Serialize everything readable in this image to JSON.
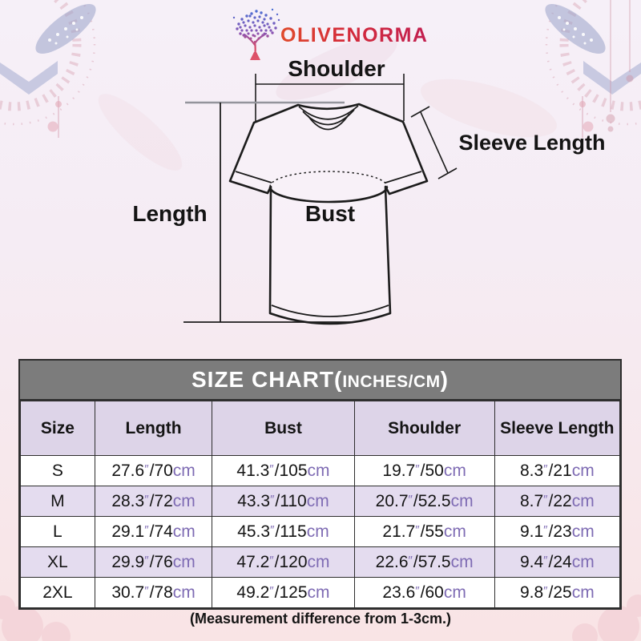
{
  "brand": {
    "name": "OLIVENORMA",
    "logo_icon": "tree-icon",
    "logo_colors": {
      "top": "#4a6fd4",
      "mid": "#8a55b4",
      "bottom": "#d84a66"
    },
    "text_color": "#d42b3a"
  },
  "diagram": {
    "labels": {
      "shoulder": "Shoulder",
      "sleeve_length": "Sleeve Length",
      "length": "Length",
      "bust": "Bust"
    }
  },
  "size_table": {
    "title": {
      "main": "SIZE CHART",
      "paren_open": "(",
      "unit_note": "INCHES/CM",
      "paren_close": ")"
    },
    "columns": [
      "Size",
      "Length",
      "Bust",
      "Shoulder",
      "Sleeve Length"
    ],
    "units": {
      "inch_mark": "″",
      "separator": "/",
      "cm_suffix": "cm"
    },
    "rows": [
      {
        "size": "S",
        "length": {
          "in": "27.6",
          "cm": "70"
        },
        "bust": {
          "in": "41.3",
          "cm": "105"
        },
        "shoulder": {
          "in": "19.7",
          "cm": "50"
        },
        "sleeve": {
          "in": "8.3",
          "cm": "21"
        }
      },
      {
        "size": "M",
        "length": {
          "in": "28.3",
          "cm": "72"
        },
        "bust": {
          "in": "43.3",
          "cm": "110"
        },
        "shoulder": {
          "in": "20.7",
          "cm": "52.5"
        },
        "sleeve": {
          "in": "8.7",
          "cm": "22"
        }
      },
      {
        "size": "L",
        "length": {
          "in": "29.1",
          "cm": "74"
        },
        "bust": {
          "in": "45.3",
          "cm": "115"
        },
        "shoulder": {
          "in": "21.7",
          "cm": "55"
        },
        "sleeve": {
          "in": "9.1",
          "cm": "23"
        }
      },
      {
        "size": "XL",
        "length": {
          "in": "29.9",
          "cm": "76"
        },
        "bust": {
          "in": "47.2",
          "cm": "120"
        },
        "shoulder": {
          "in": "22.6",
          "cm": "57.5"
        },
        "sleeve": {
          "in": "9.4",
          "cm": "24"
        }
      },
      {
        "size": "2XL",
        "length": {
          "in": "30.7",
          "cm": "78"
        },
        "bust": {
          "in": "49.2",
          "cm": "125"
        },
        "shoulder": {
          "in": "23.6",
          "cm": "60"
        },
        "sleeve": {
          "in": "9.8",
          "cm": "25"
        }
      }
    ]
  },
  "note": "(Measurement difference from 1-3cm.)",
  "colors": {
    "title_bar_bg": "#7c7c7c",
    "title_bar_text": "#ffffff",
    "header_row_bg": "#ddd4e8",
    "alt_row_bg": "#e4dcef",
    "unit_text": "#7f6cb4",
    "table_border": "#2e2e2e",
    "background_top": "#f6f0f8",
    "background_bottom": "#f9e4e5"
  },
  "chart_data": {
    "type": "table",
    "title": "SIZE CHART(INCHES/CM)",
    "columns": [
      "Size",
      "Length",
      "Bust",
      "Shoulder",
      "Sleeve Length"
    ],
    "rows": [
      [
        "S",
        "27.6″/70cm",
        "41.3″/105cm",
        "19.7″/50cm",
        "8.3″/21cm"
      ],
      [
        "M",
        "28.3″/72cm",
        "43.3″/110cm",
        "20.7″/52.5cm",
        "8.7″/22cm"
      ],
      [
        "L",
        "29.1″/74cm",
        "45.3″/115cm",
        "21.7″/55cm",
        "9.1″/23cm"
      ],
      [
        "XL",
        "29.9″/76cm",
        "47.2″/120cm",
        "22.6″/57.5cm",
        "9.4″/24cm"
      ],
      [
        "2XL",
        "30.7″/78cm",
        "49.2″/125cm",
        "23.6″/60cm",
        "9.8″/25cm"
      ]
    ],
    "footnote": "(Measurement difference from 1-3cm.)"
  }
}
